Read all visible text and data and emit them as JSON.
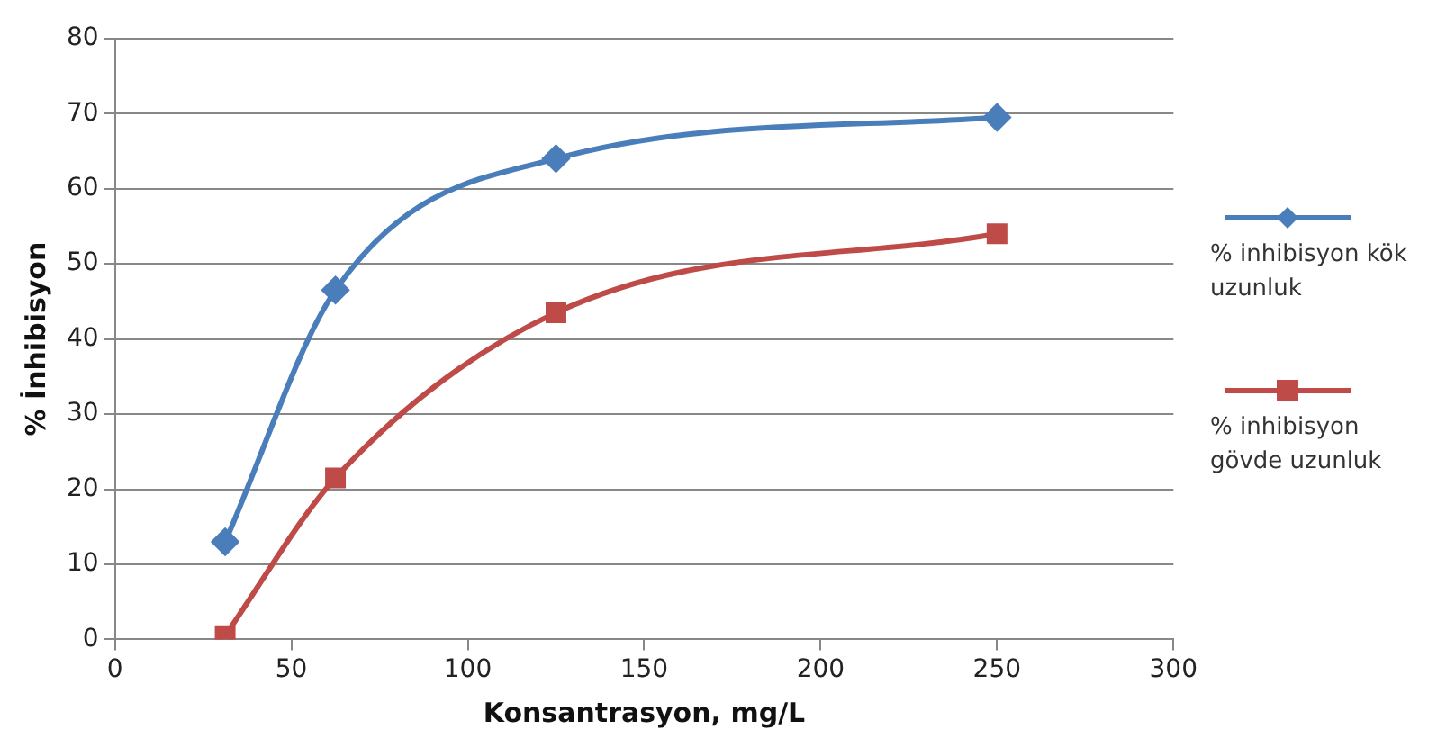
{
  "chart_data": {
    "type": "line",
    "xlabel": "Konsantrasyon, mg/L",
    "ylabel": "% İnhibisyon",
    "x": [
      31.25,
      62.5,
      125,
      250
    ],
    "series": [
      {
        "name": "% inhibisyon kök uzunluk",
        "color": "#4a7ebb",
        "marker": "diamond",
        "values": [
          13,
          46.5,
          64,
          69.5
        ]
      },
      {
        "name": "% inhibisyon gövde uzunluk",
        "color": "#be4b48",
        "marker": "square",
        "values": [
          0.5,
          21.5,
          43.5,
          54
        ]
      }
    ],
    "xlim": [
      0,
      300
    ],
    "xticks": [
      0,
      50,
      100,
      150,
      200,
      250,
      300
    ],
    "ylim": [
      0,
      80
    ],
    "yticks": [
      0,
      10,
      20,
      30,
      40,
      50,
      60,
      70,
      80
    ],
    "grid": "y",
    "legend": "right"
  }
}
